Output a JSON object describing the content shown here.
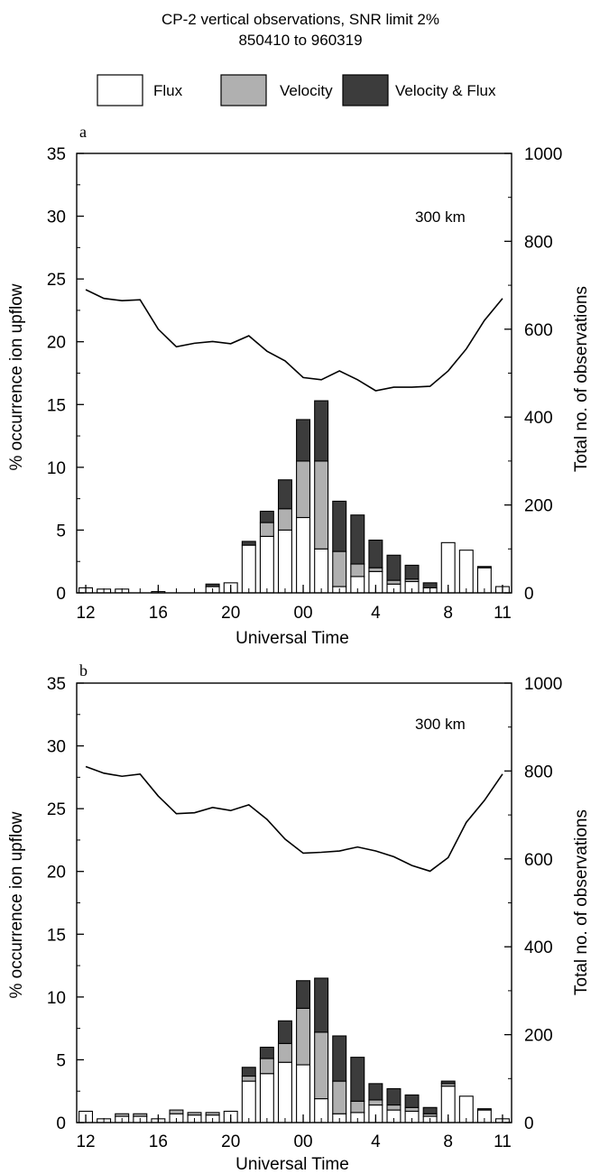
{
  "header": {
    "title_line1": "CP-2 vertical observations, SNR limit 2%",
    "title_line2": "850410 to 960319"
  },
  "legend": {
    "placement": "top",
    "items": [
      {
        "label": "Flux",
        "color": "#ffffff"
      },
      {
        "label": "Velocity",
        "color": "#b0b0b0"
      },
      {
        "label": "Velocity & Flux",
        "color": "#3c3c3c"
      }
    ]
  },
  "colors": {
    "flux": "#ffffff",
    "velocity": "#b0b0b0",
    "both": "#3c3c3c",
    "line": "#000000"
  },
  "chart_data": [
    {
      "type": "bar",
      "panel_label": "a",
      "annotation": "300 km",
      "xlabel": "Universal Time",
      "ylabel": "% occurrence ion upflow",
      "y2label": "Total no. of observations",
      "ylim": [
        0,
        35
      ],
      "y2lim": [
        0,
        1000
      ],
      "yticks": [
        0,
        5,
        10,
        15,
        20,
        25,
        30,
        35
      ],
      "y2ticks": [
        0,
        200,
        400,
        600,
        800,
        1000
      ],
      "xtick_labels": [
        "12",
        "16",
        "20",
        "00",
        "4",
        "8",
        "11"
      ],
      "xtick_hours": [
        12,
        16,
        20,
        24,
        28,
        32,
        35
      ],
      "hours": [
        12,
        13,
        14,
        15,
        16,
        17,
        18,
        19,
        20,
        21,
        22,
        23,
        24,
        25,
        26,
        27,
        28,
        29,
        30,
        31,
        32,
        33,
        34,
        35
      ],
      "series": [
        {
          "name": "Flux",
          "values": [
            0.4,
            0.3,
            0.3,
            0,
            0.1,
            0,
            0,
            0.5,
            0.8,
            3.8,
            4.5,
            5.0,
            6.0,
            3.5,
            0.5,
            1.3,
            1.7,
            0.7,
            0.9,
            0.4,
            4.0,
            3.4,
            2.0,
            0.5
          ]
        },
        {
          "name": "Velocity",
          "values": [
            0,
            0,
            0,
            0,
            0,
            0,
            0,
            0,
            0,
            0,
            1.1,
            1.7,
            4.5,
            7.0,
            2.8,
            1.0,
            0.3,
            0.3,
            0.2,
            0,
            0,
            0,
            0,
            0
          ]
        },
        {
          "name": "Velocity & Flux",
          "values": [
            0,
            0,
            0,
            0,
            0,
            0,
            0,
            0.2,
            0,
            0.3,
            0.9,
            2.3,
            3.3,
            4.8,
            4.0,
            3.9,
            2.2,
            2.0,
            1.1,
            0.4,
            0,
            0,
            0.1,
            0
          ]
        }
      ],
      "total_observations": [
        690,
        670,
        665,
        667,
        600,
        560,
        568,
        572,
        567,
        585,
        550,
        528,
        490,
        485,
        505,
        485,
        460,
        468,
        468,
        470,
        505,
        555,
        620,
        670
      ]
    },
    {
      "type": "bar",
      "panel_label": "b",
      "annotation": "300 km",
      "xlabel": "Universal Time",
      "ylabel": "% occurrence ion upflow",
      "y2label": "Total no. of observations",
      "ylim": [
        0,
        35
      ],
      "y2lim": [
        0,
        1000
      ],
      "yticks": [
        0,
        5,
        10,
        15,
        20,
        25,
        30,
        35
      ],
      "y2ticks": [
        0,
        200,
        400,
        600,
        800,
        1000
      ],
      "xtick_labels": [
        "12",
        "16",
        "20",
        "00",
        "4",
        "8",
        "11"
      ],
      "xtick_hours": [
        12,
        16,
        20,
        24,
        28,
        32,
        35
      ],
      "hours": [
        12,
        13,
        14,
        15,
        16,
        17,
        18,
        19,
        20,
        21,
        22,
        23,
        24,
        25,
        26,
        27,
        28,
        29,
        30,
        31,
        32,
        33,
        34,
        35
      ],
      "series": [
        {
          "name": "Flux",
          "values": [
            0.9,
            0.3,
            0.5,
            0.5,
            0.3,
            0.7,
            0.6,
            0.6,
            0.9,
            3.3,
            3.9,
            4.8,
            4.6,
            1.9,
            0.7,
            0.8,
            1.4,
            1.0,
            0.9,
            0.5,
            2.9,
            2.1,
            1.0,
            0.3
          ]
        },
        {
          "name": "Velocity",
          "values": [
            0,
            0,
            0.2,
            0.2,
            0,
            0.3,
            0.2,
            0.2,
            0,
            0.4,
            1.2,
            1.5,
            4.5,
            5.3,
            2.6,
            0.9,
            0.4,
            0.4,
            0.3,
            0.2,
            0.2,
            0,
            0,
            0
          ]
        },
        {
          "name": "Velocity & Flux",
          "values": [
            0,
            0,
            0,
            0,
            0,
            0,
            0,
            0,
            0,
            0.7,
            0.9,
            1.8,
            2.2,
            4.3,
            3.6,
            3.5,
            1.3,
            1.3,
            1.0,
            0.5,
            0.2,
            0,
            0.1,
            0
          ]
        }
      ],
      "total_observations": [
        810,
        795,
        788,
        793,
        743,
        703,
        705,
        717,
        710,
        723,
        690,
        645,
        613,
        615,
        618,
        627,
        618,
        605,
        585,
        572,
        603,
        683,
        733,
        793
      ]
    }
  ]
}
